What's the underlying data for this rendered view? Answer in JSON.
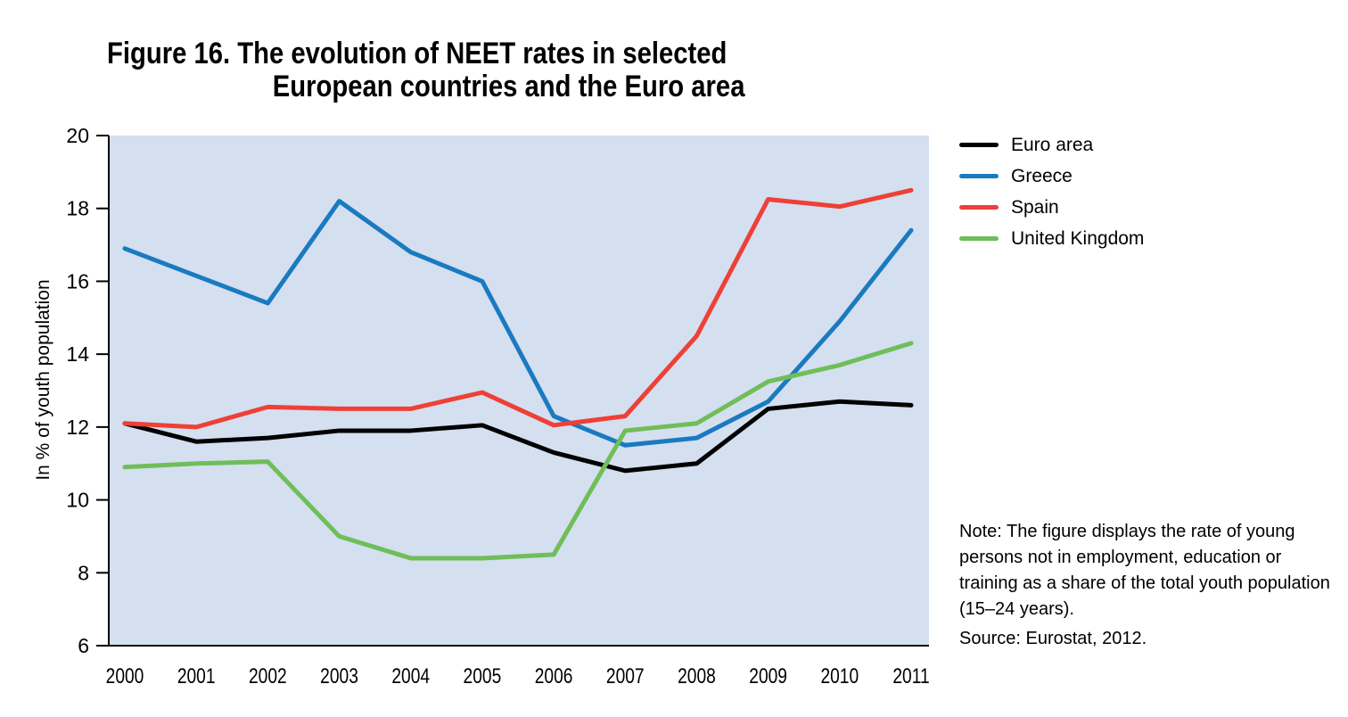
{
  "figure": {
    "title_line1": "Figure 16. The evolution of NEET rates in selected",
    "title_line2": "European countries and the Euro area",
    "note": "Note: The figure displays the rate of young persons not in employment, education or training as a share of the total youth population (15–24 years).",
    "source": "Source: Eurostat, 2012."
  },
  "chart_data": {
    "type": "line",
    "title": "Figure 16. The evolution of NEET rates in selected European countries and the Euro area",
    "xlabel": "",
    "ylabel": "In % of youth population",
    "x": [
      "2000",
      "2001",
      "2002",
      "2003",
      "2004",
      "2005",
      "2006",
      "2007",
      "2008",
      "2009",
      "2010",
      "2011"
    ],
    "ylim": [
      6,
      20
    ],
    "yticks": [
      6,
      8,
      10,
      12,
      14,
      16,
      18,
      20
    ],
    "grid": false,
    "legend_position": "right",
    "background_color": "#d4dff0",
    "series": [
      {
        "name": "Euro area",
        "color": "#000000",
        "values": [
          12.1,
          11.6,
          11.7,
          11.9,
          11.9,
          12.05,
          11.3,
          10.8,
          11.0,
          12.5,
          12.7,
          12.6
        ]
      },
      {
        "name": "Greece",
        "color": "#1a7ac0",
        "values": [
          16.9,
          16.15,
          15.4,
          18.2,
          16.8,
          16.0,
          12.3,
          11.5,
          11.7,
          12.7,
          14.9,
          17.4
        ]
      },
      {
        "name": "Spain",
        "color": "#ee4036",
        "values": [
          12.1,
          12.0,
          12.55,
          12.5,
          12.5,
          12.95,
          12.05,
          12.3,
          14.5,
          18.25,
          18.05,
          18.5
        ]
      },
      {
        "name": "United Kingdom",
        "color": "#6fbe58",
        "values": [
          10.9,
          11.0,
          11.05,
          9.0,
          8.4,
          8.4,
          8.5,
          11.9,
          12.1,
          13.25,
          13.7,
          14.3
        ]
      }
    ]
  }
}
